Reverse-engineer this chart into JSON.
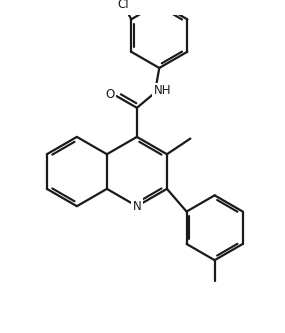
{
  "background": "#ffffff",
  "line_color": "#1a1a1a",
  "line_width": 1.6,
  "dbo": 0.055,
  "font_size": 8.5,
  "figsize": [
    2.85,
    3.33
  ],
  "dpi": 100,
  "xlim": [
    -2.4,
    2.6
  ],
  "ylim": [
    -2.8,
    2.8
  ]
}
